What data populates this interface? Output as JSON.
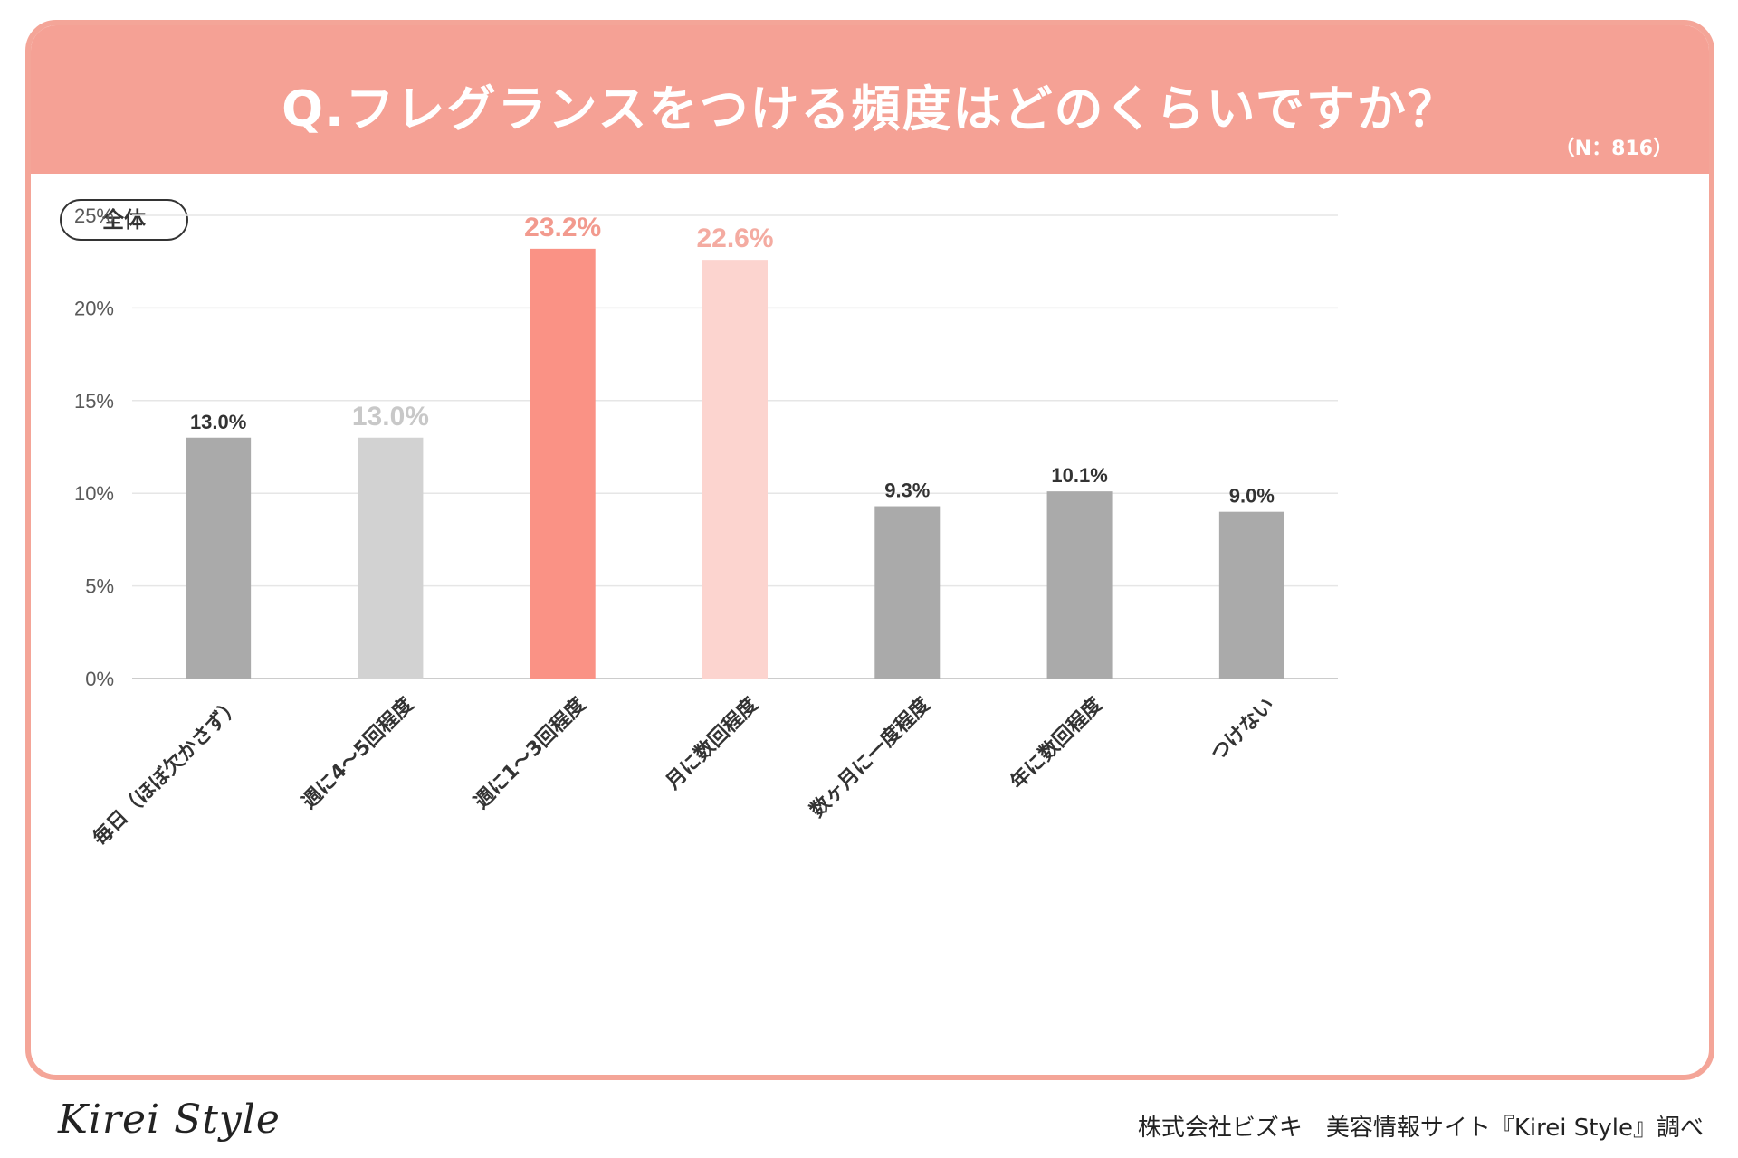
{
  "header": {
    "title": "Q.フレグランスをつける頻度はどのくらいですか？",
    "n_label": "（N：816）"
  },
  "group_label": "全体",
  "chart_data": {
    "type": "bar",
    "title": "Q.フレグランスをつける頻度はどのくらいですか？",
    "xlabel": "",
    "ylabel": "",
    "ylim": [
      0,
      25
    ],
    "yticks": [
      0,
      5,
      10,
      15,
      20,
      25
    ],
    "ytick_labels": [
      "0%",
      "5%",
      "10%",
      "15%",
      "20%",
      "25%"
    ],
    "categories": [
      "毎日（ほぼ欠かさず）",
      "週に4～5回程度",
      "週に1～3回程度",
      "月に数回程度",
      "数ヶ月に一度程度",
      "年に数回程度",
      "つけない"
    ],
    "values": [
      13.0,
      13.0,
      23.2,
      22.6,
      9.3,
      10.1,
      9.0
    ],
    "value_labels": [
      "13.0%",
      "13.0%",
      "23.2%",
      "22.6%",
      "9.3%",
      "10.1%",
      "9.0%"
    ],
    "bar_colors": [
      "#aaaaaa",
      "#d2d2d2",
      "#fa9285",
      "#fcd4cf",
      "#aaaaaa",
      "#aaaaaa",
      "#aaaaaa"
    ],
    "label_colors": [
      "#333333",
      "#c8c8c8",
      "#f29a8e",
      "#f4aba1",
      "#333333",
      "#333333",
      "#333333"
    ],
    "label_emphasis": [
      false,
      true,
      true,
      true,
      false,
      false,
      false
    ],
    "grid": true
  },
  "footer": {
    "logo": "Kirei Style",
    "credit": "株式会社ビズキ　美容情報サイト『Kirei Style』調べ"
  }
}
